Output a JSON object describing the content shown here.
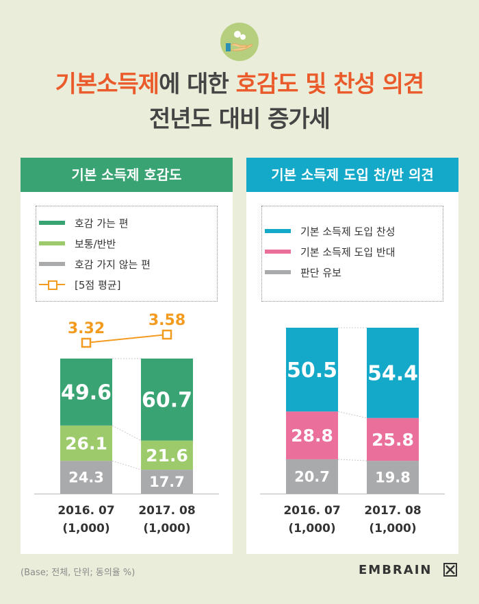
{
  "header": {
    "icon": "hand-coins-icon",
    "title_part1": "기본소득제",
    "title_part2": "에 대한 ",
    "title_part3": "호감도 및 찬성 의견",
    "title_line2": "전년도 대비 증가세"
  },
  "colors": {
    "green_dark": "#3aa373",
    "green_light": "#9dcb6b",
    "gray": "#a9aaac",
    "orange": "#f39b1f",
    "blue": "#14a9c9",
    "pink": "#ea6f9b",
    "panel_head_left": "#3aa373",
    "panel_head_right": "#14a9c9"
  },
  "panels": [
    {
      "title": "기본 소득제 호감도",
      "legend": [
        {
          "label": "호감 가는 편",
          "color": "#3aa373",
          "kind": "bar"
        },
        {
          "label": "보통/반반",
          "color": "#9dcb6b",
          "kind": "bar"
        },
        {
          "label": "호감 가지 않는 편",
          "color": "#a9aaac",
          "kind": "bar"
        },
        {
          "label": "[5점 평균]",
          "color": "#f39b1f",
          "kind": "line"
        }
      ]
    },
    {
      "title": "기본 소득제 도입 찬/반 의견",
      "legend": [
        {
          "label": "기본 소득제 도입 찬성",
          "color": "#14a9c9",
          "kind": "bar"
        },
        {
          "label": "기본 소득제 도입 반대",
          "color": "#ea6f9b",
          "kind": "bar"
        },
        {
          "label": "판단 유보",
          "color": "#a9aaac",
          "kind": "bar"
        }
      ]
    }
  ],
  "chart_data": [
    {
      "type": "bar",
      "stacked": true,
      "title": "기본 소득제 호감도",
      "categories": [
        "2016. 07\n(1,000)",
        "2017. 08\n(1,000)"
      ],
      "category_lines": [
        [
          "2016. 07",
          "(1,000)"
        ],
        [
          "2017. 08",
          "(1,000)"
        ]
      ],
      "series": [
        {
          "name": "호감 가지 않는 편",
          "values": [
            24.3,
            17.7
          ],
          "color": "#a9aaac"
        },
        {
          "name": "보통/반반",
          "values": [
            26.1,
            21.6
          ],
          "color": "#9dcb6b"
        },
        {
          "name": "호감 가는 편",
          "values": [
            49.6,
            60.7
          ],
          "color": "#3aa373"
        }
      ],
      "line_series": {
        "name": "[5점 평균]",
        "values": [
          3.32,
          3.58
        ],
        "labels": [
          "3.32",
          "3.58"
        ],
        "color": "#f39b1f"
      },
      "ylim": [
        0,
        100
      ]
    },
    {
      "type": "bar",
      "stacked": true,
      "title": "기본 소득제 도입 찬/반 의견",
      "categories": [
        "2016. 07\n(1,000)",
        "2017. 08\n(1,000)"
      ],
      "category_lines": [
        [
          "2016. 07",
          "(1,000)"
        ],
        [
          "2017. 08",
          "(1,000)"
        ]
      ],
      "series": [
        {
          "name": "판단 유보",
          "values": [
            20.7,
            19.8
          ],
          "color": "#a9aaac"
        },
        {
          "name": "기본 소득제 도입 반대",
          "values": [
            28.8,
            25.8
          ],
          "color": "#ea6f9b"
        },
        {
          "name": "기본 소득제 도입 찬성",
          "values": [
            50.5,
            54.4
          ],
          "color": "#14a9c9"
        }
      ],
      "ylim": [
        0,
        100
      ]
    }
  ],
  "footer": {
    "note": "(Base; 전체, 단위; 동의율 %)",
    "brand": "EMBRAIN",
    "brand_icon": "embrain-x-icon"
  }
}
